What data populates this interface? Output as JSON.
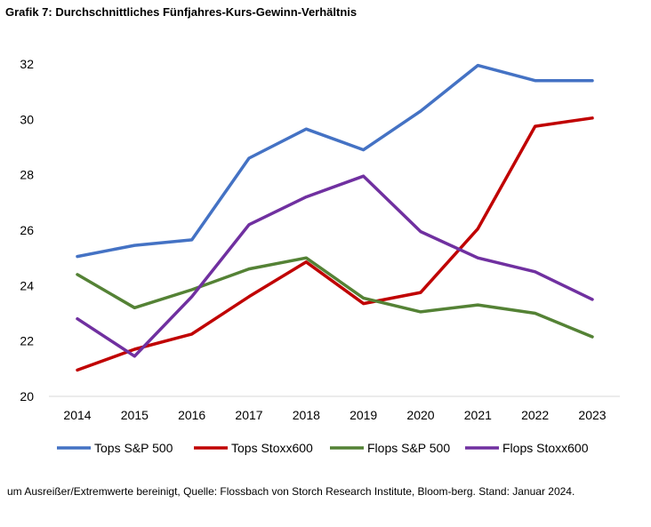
{
  "header": {
    "title": "Grafik 7: Durchschnittliches Fünfjahres-Kurs-Gewinn-Verhältnis"
  },
  "footnote": "um Ausreißer/Extremwerte bereinigt, Quelle: Flossbach von Storch Research Institute, Bloom-berg. Stand: Januar 2024.",
  "chart_data": {
    "type": "line",
    "title": "Grafik 7: Durchschnittliches Fünfjahres-Kurs-Gewinn-Verhältnis",
    "xlabel": "",
    "ylabel": "",
    "categories": [
      "2014",
      "2015",
      "2016",
      "2017",
      "2018",
      "2019",
      "2020",
      "2021",
      "2022",
      "2023"
    ],
    "ylim": [
      20,
      32
    ],
    "yticks": [
      20,
      22,
      24,
      26,
      28,
      30,
      32
    ],
    "grid": "none",
    "legend": "bottom",
    "series": [
      {
        "name": "Tops S&P 500",
        "color": "#4472C4",
        "values": [
          25.05,
          25.45,
          25.65,
          28.6,
          29.65,
          28.9,
          30.3,
          31.95,
          31.4,
          31.4
        ]
      },
      {
        "name": "Tops Stoxx600",
        "color": "#C00000",
        "values": [
          20.95,
          21.7,
          22.25,
          23.6,
          24.85,
          23.35,
          23.75,
          26.05,
          29.75,
          30.05
        ]
      },
      {
        "name": "Flops S&P 500",
        "color": "#548235",
        "values": [
          24.4,
          23.2,
          23.85,
          24.6,
          25.0,
          23.55,
          23.05,
          23.3,
          23.0,
          22.15
        ]
      },
      {
        "name": "Flops Stoxx600",
        "color": "#7030A0",
        "values": [
          22.8,
          21.45,
          23.6,
          26.2,
          27.2,
          27.95,
          25.95,
          25.0,
          24.5,
          23.5
        ]
      }
    ]
  }
}
